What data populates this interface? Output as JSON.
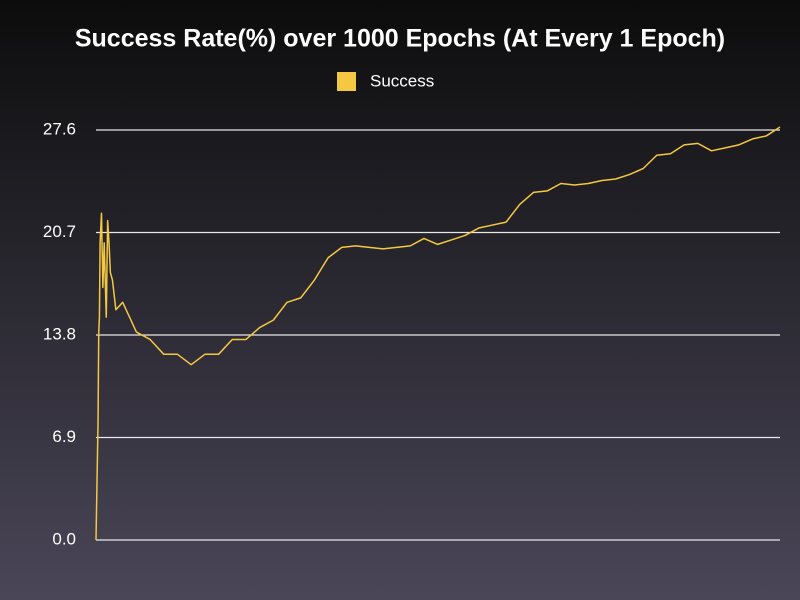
{
  "chart_data": {
    "type": "line",
    "title": "Success Rate(%) over 1000 Epochs (At Every 1 Epoch)",
    "x": [
      1,
      4,
      5,
      6,
      7,
      9,
      11,
      13,
      16,
      18,
      20,
      22,
      25,
      30,
      40,
      60,
      80,
      100,
      120,
      140,
      160,
      180,
      200,
      220,
      240,
      260,
      280,
      300,
      320,
      340,
      360,
      380,
      400,
      420,
      440,
      460,
      480,
      500,
      520,
      540,
      560,
      580,
      600,
      620,
      640,
      660,
      680,
      700,
      720,
      740,
      760,
      780,
      800,
      820,
      840,
      860,
      880,
      900,
      920,
      940,
      960,
      980,
      1000
    ],
    "series": [
      {
        "name": "Success",
        "color": "#f5c842",
        "values": [
          0,
          8,
          14,
          15,
          20,
          22,
          17,
          20,
          15,
          21.5,
          20,
          18,
          17.5,
          15.5,
          16,
          14,
          13.5,
          12.5,
          12.5,
          11.8,
          12.5,
          12.5,
          13.5,
          13.5,
          14.3,
          14.8,
          16,
          16.3,
          17.5,
          19,
          19.7,
          19.8,
          19.7,
          19.6,
          19.7,
          19.8,
          20.3,
          19.9,
          20.2,
          20.5,
          21,
          21.2,
          21.4,
          22.6,
          23.4,
          23.5,
          24,
          23.9,
          24,
          24.2,
          24.3,
          24.6,
          25,
          25.9,
          26,
          26.6,
          26.7,
          26.2,
          26.4,
          26.6,
          27,
          27.2,
          27.8
        ]
      }
    ],
    "xlim": [
      1,
      1000
    ],
    "ylim": [
      0,
      27.6
    ],
    "yticks": [
      {
        "value": 0,
        "label": "0.0"
      },
      6.9,
      13.8,
      20.7,
      27.6
    ],
    "grid": true
  }
}
